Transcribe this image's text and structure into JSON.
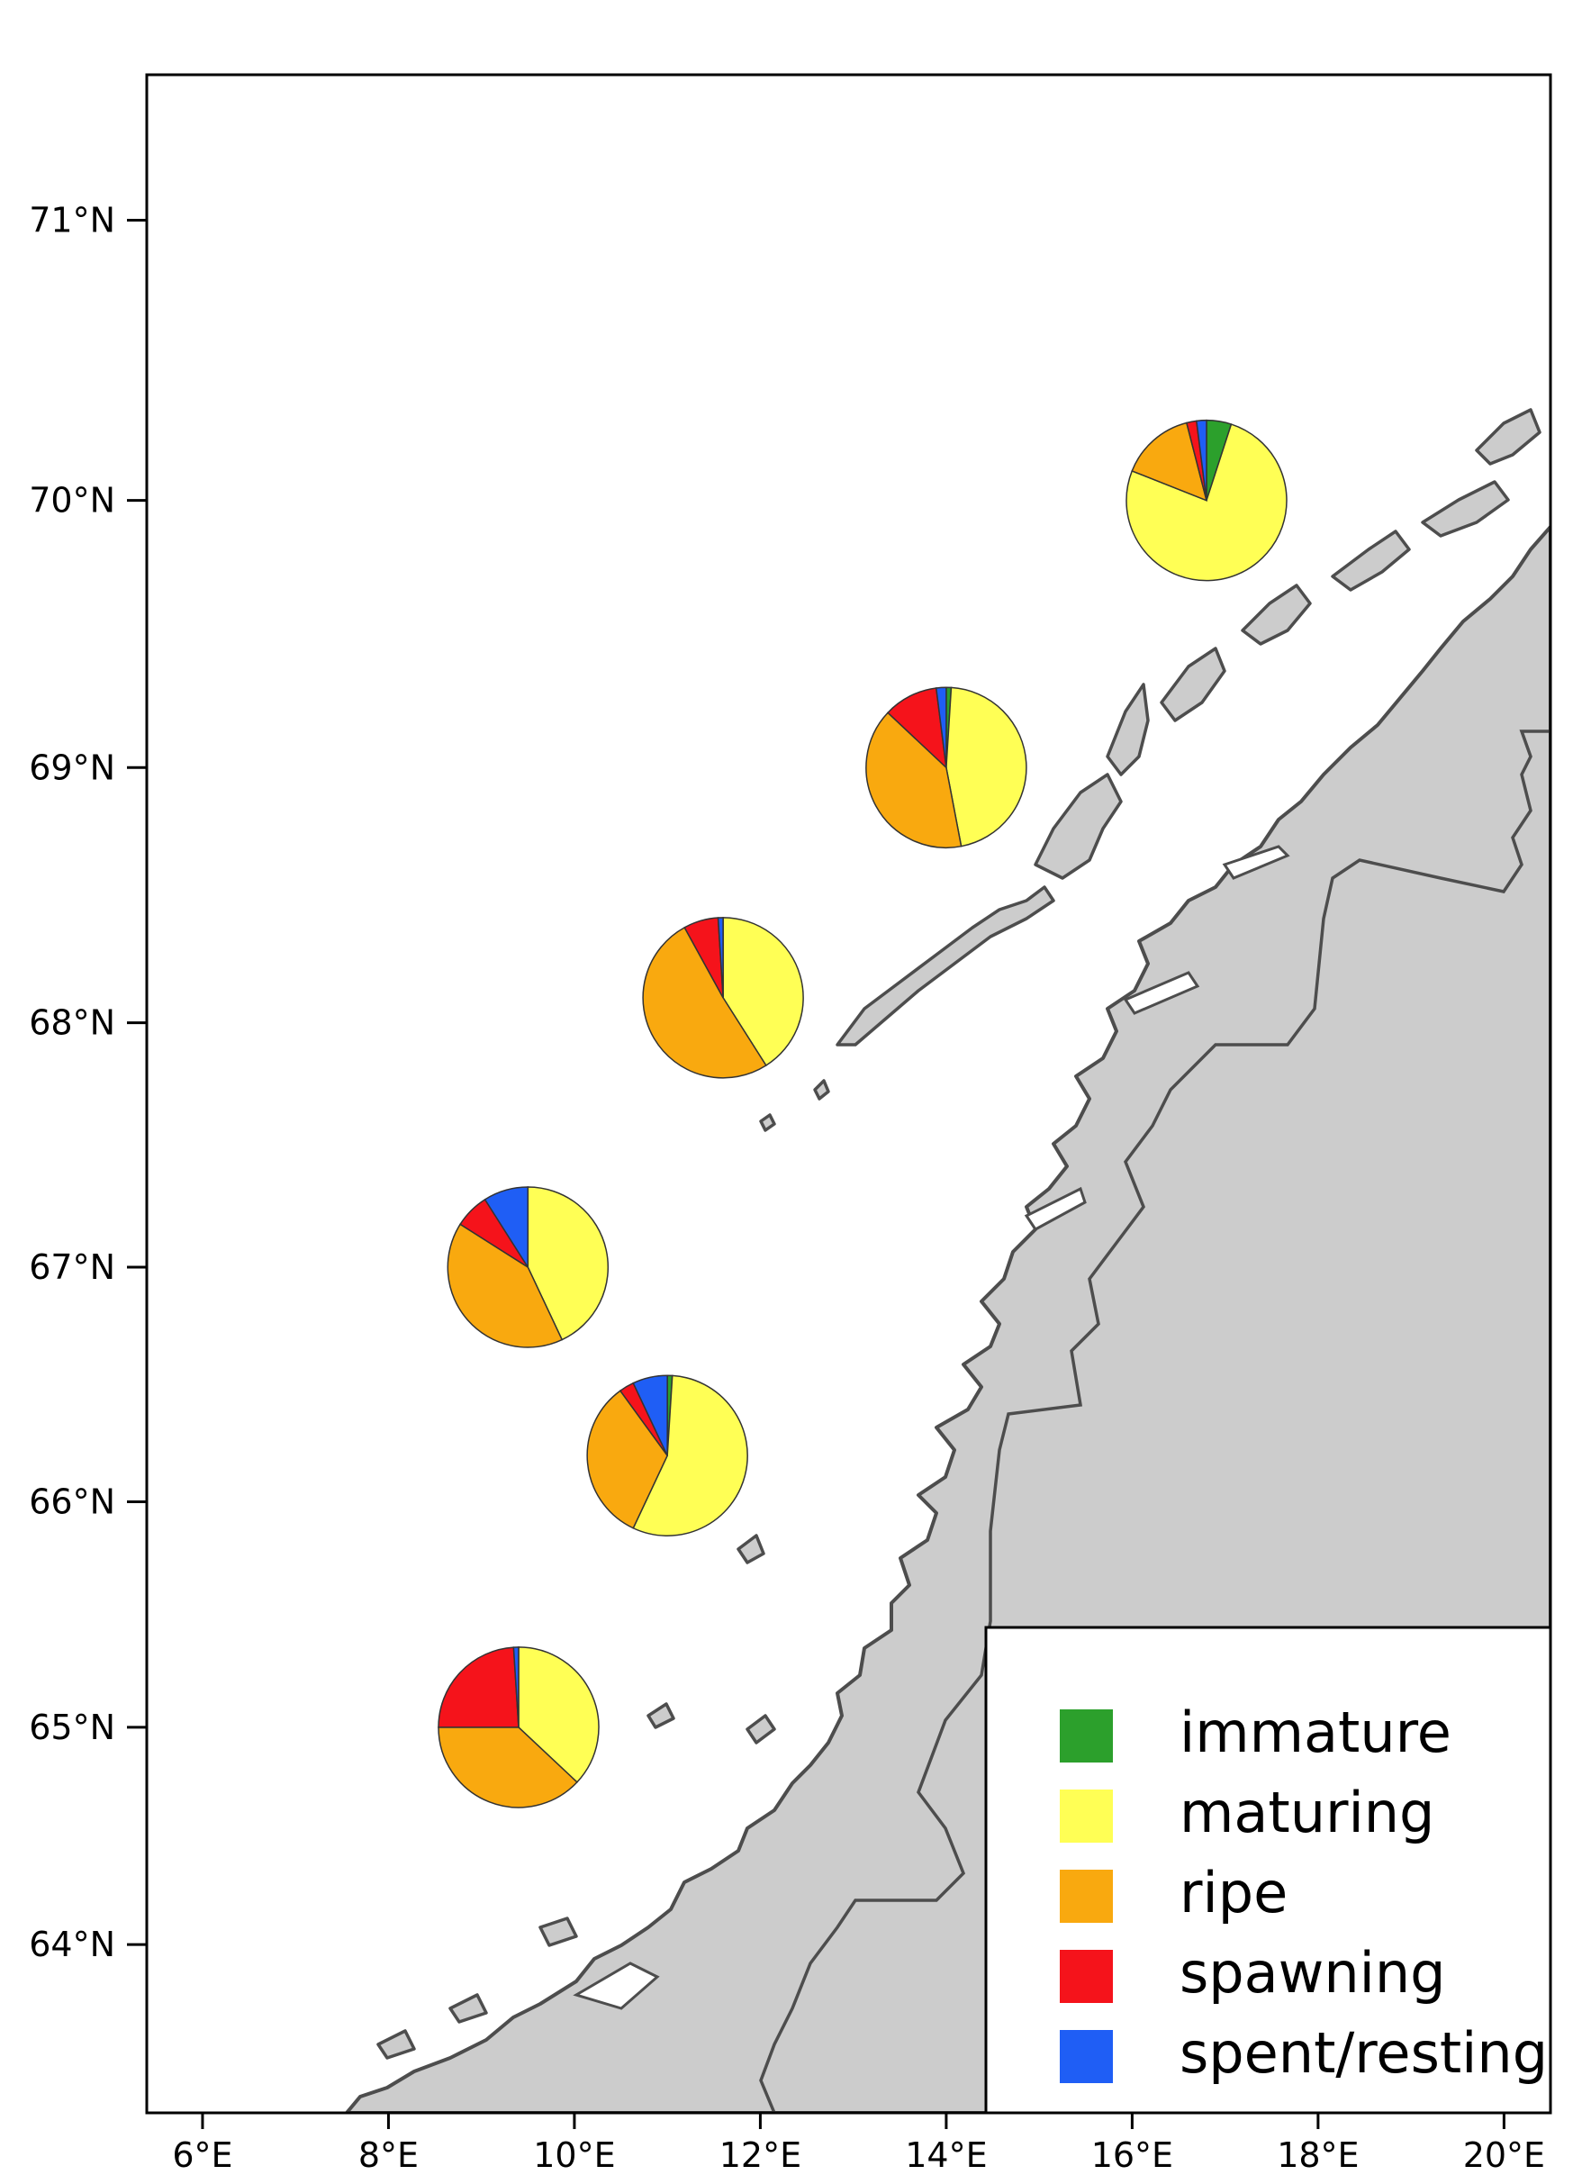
{
  "map": {
    "lon_range": [
      5.4,
      20.5
    ],
    "lat_range": [
      63.2,
      71.5
    ],
    "x_ticks": [
      {
        "value": 6,
        "label": "6°E"
      },
      {
        "value": 8,
        "label": "8°E"
      },
      {
        "value": 10,
        "label": "10°E"
      },
      {
        "value": 12,
        "label": "12°E"
      },
      {
        "value": 14,
        "label": "14°E"
      },
      {
        "value": 16,
        "label": "16°E"
      },
      {
        "value": 18,
        "label": "18°E"
      },
      {
        "value": 20,
        "label": "20°E"
      }
    ],
    "y_ticks": [
      {
        "value": 64,
        "label": "64°N"
      },
      {
        "value": 65,
        "label": "65°N"
      },
      {
        "value": 66,
        "label": "66°N"
      },
      {
        "value": 67,
        "label": "67°N"
      },
      {
        "value": 68,
        "label": "68°N"
      },
      {
        "value": 69,
        "label": "69°N"
      },
      {
        "value": 70,
        "label": "70°N"
      },
      {
        "value": 71,
        "label": "71°N"
      }
    ],
    "land_color": "#cccccc",
    "coastline_color": "#4d4d4d",
    "sea_color": "#ffffff"
  },
  "legend": {
    "placement": "bottom-right",
    "items": [
      {
        "label": "immature",
        "color": "#2ca02c"
      },
      {
        "label": "maturing",
        "color": "#ffff55"
      },
      {
        "label": "ripe",
        "color": "#f9a90f"
      },
      {
        "label": "spawning",
        "color": "#f5131b"
      },
      {
        "label": "spent/resting",
        "color": "#1f5ef5"
      }
    ]
  },
  "chart_data": {
    "type": "pie",
    "categories": [
      "immature",
      "maturing",
      "ripe",
      "spawning",
      "spent/resting"
    ],
    "pies": [
      {
        "lon": 16.8,
        "lat": 70.0,
        "values": [
          0.05,
          0.76,
          0.15,
          0.02,
          0.02
        ]
      },
      {
        "lon": 14.0,
        "lat": 69.0,
        "values": [
          0.01,
          0.46,
          0.4,
          0.11,
          0.02
        ]
      },
      {
        "lon": 11.6,
        "lat": 68.1,
        "values": [
          0.0,
          0.41,
          0.51,
          0.07,
          0.01
        ]
      },
      {
        "lon": 9.5,
        "lat": 67.0,
        "values": [
          0.0,
          0.43,
          0.41,
          0.07,
          0.09
        ]
      },
      {
        "lon": 11.0,
        "lat": 66.2,
        "values": [
          0.01,
          0.56,
          0.33,
          0.03,
          0.07
        ]
      },
      {
        "lon": 9.4,
        "lat": 65.0,
        "values": [
          0.0,
          0.37,
          0.38,
          0.24,
          0.01
        ]
      }
    ]
  }
}
